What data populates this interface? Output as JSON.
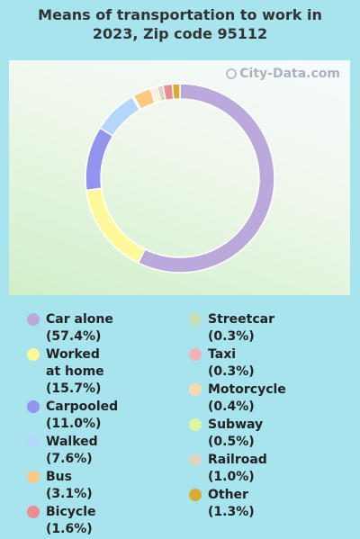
{
  "title_line1": "Means of transportation to work in",
  "title_line2": "2023, Zip code 95112",
  "watermark": "City-Data.com",
  "chart_data": {
    "type": "pie",
    "series": [
      {
        "name": "Car alone",
        "value": 57.4,
        "color": "#bba9dc",
        "label": "Car alone (57.4%)"
      },
      {
        "name": "Worked at home",
        "value": 15.7,
        "color": "#fdf99a",
        "label": "Worked at home (15.7%)"
      },
      {
        "name": "Carpooled",
        "value": 11.0,
        "color": "#9393f0",
        "label": "Carpooled (11.0%)"
      },
      {
        "name": "Walked",
        "value": 7.6,
        "color": "#b3d7fb",
        "label": "Walked (7.6%)"
      },
      {
        "name": "Streetcar",
        "value": 0.3,
        "color": "#c7dfb4",
        "label": "Streetcar (0.3%)"
      },
      {
        "name": "Bus",
        "value": 3.1,
        "color": "#fdc982",
        "label": "Bus (3.1%)"
      },
      {
        "name": "Taxi",
        "value": 0.3,
        "color": "#f0b3b3",
        "label": "Taxi (0.3%)"
      },
      {
        "name": "Motorcycle",
        "value": 0.4,
        "color": "#fbd9b0",
        "label": "Motorcycle (0.4%)"
      },
      {
        "name": "Subway",
        "value": 0.5,
        "color": "#dcf7a0",
        "label": "Subway (0.5%)"
      },
      {
        "name": "Railroad",
        "value": 1.0,
        "color": "#dcd3c0",
        "label": "Railroad (1.0%)"
      },
      {
        "name": "Bicycle",
        "value": 1.6,
        "color": "#ec8d8d",
        "label": "Bicycle (1.6%)"
      },
      {
        "name": "Other",
        "value": 1.3,
        "color": "#d6ac33",
        "label": "Other (1.3%)"
      }
    ],
    "legend_left": [
      "Car alone",
      "Worked at home",
      "Carpooled",
      "Walked",
      "Bus",
      "Bicycle"
    ],
    "legend_right": [
      "Streetcar",
      "Taxi",
      "Motorcycle",
      "Subway",
      "Railroad",
      "Other"
    ]
  }
}
